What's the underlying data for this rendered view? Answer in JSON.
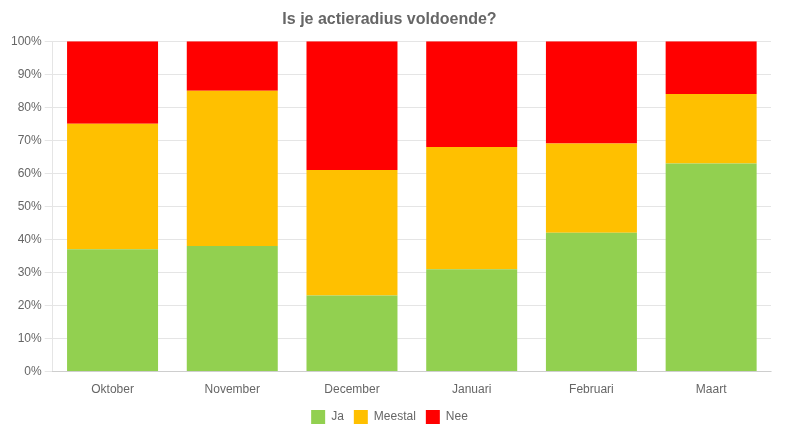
{
  "chart_data": {
    "type": "bar",
    "title": "Is je actieradius voldoende?",
    "categories": [
      "Oktober",
      "November",
      "December",
      "Januari",
      "Februari",
      "Maart"
    ],
    "series": [
      {
        "name": "Ja",
        "color": "#92D050",
        "values": [
          37,
          38,
          23,
          31,
          42,
          63
        ]
      },
      {
        "name": "Meestal",
        "color": "#FFC000",
        "values": [
          38,
          47,
          38,
          37,
          27,
          21
        ]
      },
      {
        "name": "Nee",
        "color": "#FF0000",
        "values": [
          25,
          15,
          39,
          32,
          31,
          16
        ]
      }
    ],
    "stacked": true,
    "ylim": [
      0,
      100
    ],
    "yticks": [
      {
        "value": 0,
        "label": "0%"
      },
      {
        "value": 10,
        "label": "10%"
      },
      {
        "value": 20,
        "label": "20%"
      },
      {
        "value": 30,
        "label": "30%"
      },
      {
        "value": 40,
        "label": "40%"
      },
      {
        "value": 50,
        "label": "50%"
      },
      {
        "value": 60,
        "label": "60%"
      },
      {
        "value": 70,
        "label": "70%"
      },
      {
        "value": 80,
        "label": "80%"
      },
      {
        "value": 90,
        "label": "90%"
      },
      {
        "value": 100,
        "label": "100%"
      }
    ],
    "grid": true,
    "legend": "bottom"
  }
}
